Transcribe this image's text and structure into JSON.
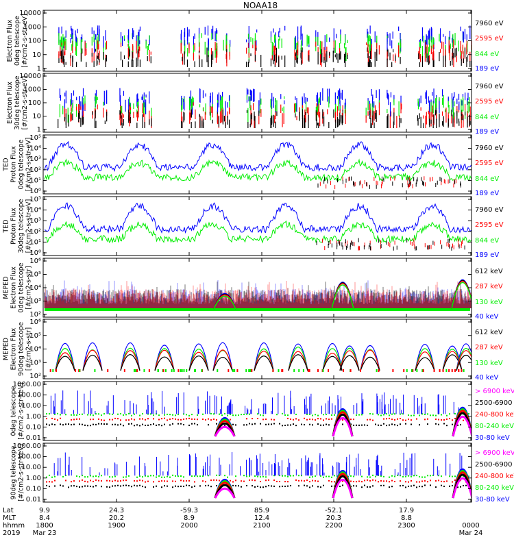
{
  "title": "NOAA18",
  "colors": {
    "blue": "#0000ff",
    "red": "#ff0000",
    "green": "#00ee00",
    "black": "#000000",
    "magenta": "#ff00ff"
  },
  "chart_data": [
    {
      "type": "scatter",
      "ylabel": [
        "Electron Flux",
        "0deg telescope",
        "[#/cm2-s-str-eV]"
      ],
      "yscale": "log",
      "ylim": [
        1,
        10000
      ],
      "yticks": [
        "10000",
        "1000",
        "100",
        "10",
        "1"
      ],
      "legend": [
        {
          "label": "7960 eV",
          "color": "#000000"
        },
        {
          "label": "2595 eV",
          "color": "#ff0000"
        },
        {
          "label": "844 eV",
          "color": "#00ee00"
        },
        {
          "label": "189 eV",
          "color": "#0000ff"
        }
      ]
    },
    {
      "type": "scatter",
      "ylabel": [
        "Electron Flux",
        "30deg telescope",
        "[#/cm2-s-str-eV]"
      ],
      "yscale": "log",
      "ylim": [
        1,
        10000
      ],
      "yticks": [
        "10000",
        "1000",
        "100",
        "10",
        "1"
      ],
      "legend": [
        {
          "label": "7960 eV",
          "color": "#000000"
        },
        {
          "label": "2595 eV",
          "color": "#ff0000"
        },
        {
          "label": "844 eV",
          "color": "#00ee00"
        },
        {
          "label": "189 eV",
          "color": "#0000ff"
        }
      ]
    },
    {
      "type": "line",
      "ylabel": [
        "TED",
        "Proton Flux",
        "0deg telescope",
        "[#/cm2-s-str-eV]"
      ],
      "yscale": "log",
      "ylim": [
        1,
        100000
      ],
      "yticks": [
        "10⁵",
        "10⁴",
        "10³",
        "10²",
        "10¹",
        "10⁰"
      ],
      "legend": [
        {
          "label": "7960 eV",
          "color": "#000000"
        },
        {
          "label": "2595 eV",
          "color": "#ff0000"
        },
        {
          "label": "844 eV",
          "color": "#00ee00"
        },
        {
          "label": "189 eV",
          "color": "#0000ff"
        }
      ]
    },
    {
      "type": "line",
      "ylabel": [
        "TED",
        "Proton Flux",
        "30deg telescope",
        "[#/cm2-s-str-eV]"
      ],
      "yscale": "log",
      "ylim": [
        1,
        100000
      ],
      "yticks": [
        "10⁵",
        "10⁴",
        "10³",
        "10²",
        "10¹",
        "10⁰"
      ],
      "legend": [
        {
          "label": "7960 eV",
          "color": "#000000"
        },
        {
          "label": "2595 eV",
          "color": "#ff0000"
        },
        {
          "label": "844 eV",
          "color": "#00ee00"
        },
        {
          "label": "189 eV",
          "color": "#0000ff"
        }
      ]
    },
    {
      "type": "line",
      "ylabel": [
        "MEPED",
        "Electron Flux",
        "0deg telescope",
        "[#/cm2-s-str]"
      ],
      "yscale": "log",
      "ylim": [
        100,
        1000000
      ],
      "yticks": [
        "10⁶",
        "10⁵",
        "10⁴",
        "10³",
        "10²"
      ],
      "legend": [
        {
          "label": "612 keV",
          "color": "#000000"
        },
        {
          "label": "287 keV",
          "color": "#ff0000"
        },
        {
          "label": "130 keV",
          "color": "#00ee00"
        },
        {
          "label": "40 keV",
          "color": "#0000ff"
        }
      ]
    },
    {
      "type": "line",
      "ylabel": [
        "MEPED",
        "Electron Flux",
        "90deg telescope",
        "[#/cm2-s-str]"
      ],
      "yscale": "log",
      "ylim": [
        100,
        1000000
      ],
      "yticks": [
        "10⁶",
        "10⁵",
        "10⁴",
        "10³",
        "10²"
      ],
      "legend": [
        {
          "label": "612 keV",
          "color": "#000000"
        },
        {
          "label": "287 keV",
          "color": "#ff0000"
        },
        {
          "label": "130 keV",
          "color": "#00ee00"
        },
        {
          "label": "40 keV",
          "color": "#0000ff"
        }
      ]
    },
    {
      "type": "scatter",
      "ylabel": [
        "0deg telescope",
        "[#/cm2-s-str-keV]"
      ],
      "yscale": "log",
      "ylim": [
        0.01,
        1000
      ],
      "yticks": [
        "1000.00",
        "100.00",
        "10.00",
        "1.00",
        "0.10",
        "0.01"
      ],
      "legend": [
        {
          "label": "> 6900 keV",
          "color": "#ff00ff"
        },
        {
          "label": "2500-6900",
          "color": "#000000"
        },
        {
          "label": "240-800 keV",
          "color": "#ff0000"
        },
        {
          "label": "80-240 keV",
          "color": "#00ee00"
        },
        {
          "label": "30-80 keV",
          "color": "#0000ff"
        }
      ]
    },
    {
      "type": "scatter",
      "ylabel": [
        "90deg telescope",
        "[#/cm2-s-str-keV]"
      ],
      "yscale": "log",
      "ylim": [
        0.01,
        1000
      ],
      "yticks": [
        "1000.00",
        "100.00",
        "10.00",
        "1.00",
        "0.10",
        "0.01"
      ],
      "legend": [
        {
          "label": "> 6900 keV",
          "color": "#ff00ff"
        },
        {
          "label": "2500-6900",
          "color": "#000000"
        },
        {
          "label": "240-800 keV",
          "color": "#ff0000"
        },
        {
          "label": "80-240 keV",
          "color": "#00ee00"
        },
        {
          "label": "30-80 keV",
          "color": "#0000ff"
        }
      ]
    }
  ],
  "xaxis": {
    "row_labels": [
      "Lat",
      "MLT",
      "hhmm",
      "2019"
    ],
    "ticks": [
      {
        "lat": "9.9",
        "mlt": "8.4",
        "hhmm": "1800",
        "date": "Mar 23"
      },
      {
        "lat": "24.3",
        "mlt": "20.2",
        "hhmm": "1900",
        "date": ""
      },
      {
        "lat": "-59.3",
        "mlt": "8.9",
        "hhmm": "2000",
        "date": ""
      },
      {
        "lat": "85.9",
        "mlt": "12.4",
        "hhmm": "2100",
        "date": ""
      },
      {
        "lat": "-52.1",
        "mlt": "20.3",
        "hhmm": "2200",
        "date": ""
      },
      {
        "lat": "17.9",
        "mlt": "8.8",
        "hhmm": "2300",
        "date": ""
      },
      {
        "lat": "",
        "mlt": "",
        "hhmm": "0000",
        "date": "Mar 24"
      }
    ]
  }
}
